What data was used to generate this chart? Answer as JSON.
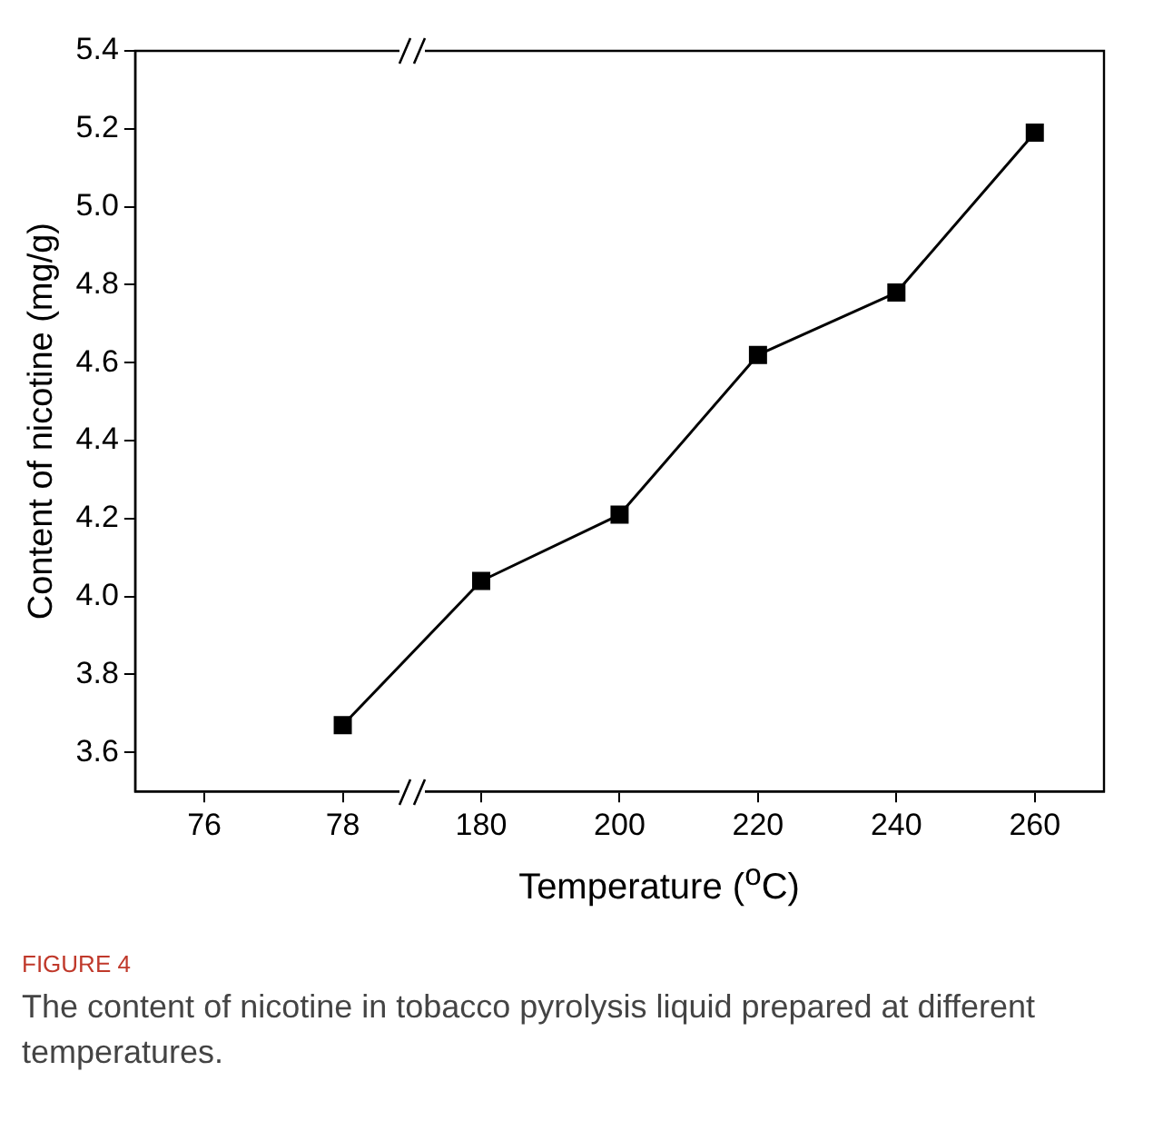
{
  "chart_data": {
    "type": "line",
    "xlabel": "Temperature ($^{o}$C)",
    "ylabel": "Content of nicotine (mg/g)",
    "categories": [
      "76",
      "78",
      "180",
      "200",
      "220",
      "240",
      "260"
    ],
    "values": [
      null,
      3.67,
      4.04,
      4.21,
      4.62,
      4.78,
      5.19
    ],
    "color": "#000000",
    "marker": "square",
    "line_style": "solid",
    "grid": false,
    "legend": false,
    "ylim": [
      3.5,
      5.4
    ],
    "yticks": [
      3.6,
      3.8,
      {
        "value": 4,
        "label": "4.0"
      },
      4.2,
      4.4,
      4.6,
      4.8,
      {
        "value": 5,
        "label": "5.0"
      },
      5.2,
      5.4
    ],
    "annotations": [
      "FIGURE 4",
      "The content of nicotine in tobacco pyrolysis liquid prepared at different temperatures."
    ]
  }
}
